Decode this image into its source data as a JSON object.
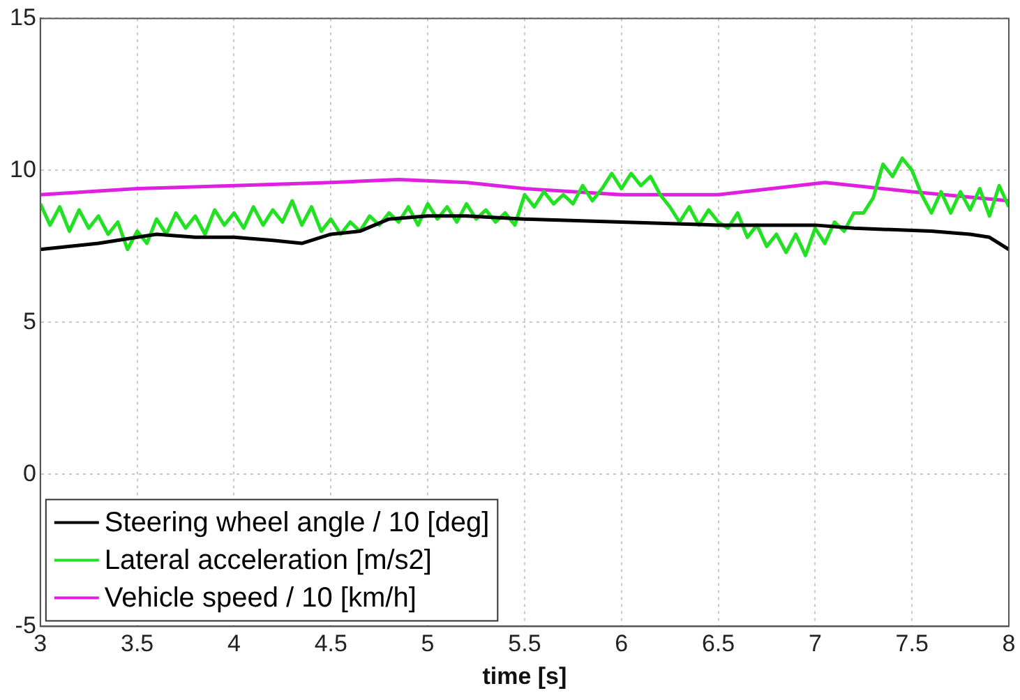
{
  "chart_data": {
    "type": "line",
    "xlabel": "time [s]",
    "xlim": [
      3,
      8
    ],
    "xticks": [
      3,
      3.5,
      4,
      4.5,
      5,
      5.5,
      6,
      6.5,
      7,
      7.5,
      8
    ],
    "ylim": [
      -5,
      15
    ],
    "yticks": [
      -5,
      0,
      5,
      10,
      15
    ],
    "grid": true,
    "legend": "bottom left",
    "marker": "none",
    "line_style": "solid",
    "series": [
      {
        "name": "Steering wheel angle / 10 [deg]",
        "color": "#000000",
        "x": [
          3,
          3.3,
          3.5,
          3.6,
          3.8,
          4,
          4.2,
          4.35,
          4.5,
          4.65,
          4.8,
          5,
          5.2,
          5.5,
          6,
          6.5,
          7,
          7.2,
          7.6,
          7.8,
          7.9,
          8
        ],
        "values": [
          7.4,
          7.6,
          7.8,
          7.9,
          7.8,
          7.8,
          7.7,
          7.6,
          7.9,
          8.0,
          8.4,
          8.5,
          8.5,
          8.4,
          8.3,
          8.2,
          8.2,
          8.1,
          8.0,
          7.9,
          7.8,
          7.4
        ]
      },
      {
        "name": "Lateral acceleration [m/s2]",
        "color": "#22e022",
        "x": [
          3,
          3.05,
          3.1,
          3.15,
          3.2,
          3.25,
          3.3,
          3.35,
          3.4,
          3.45,
          3.5,
          3.55,
          3.6,
          3.65,
          3.7,
          3.75,
          3.8,
          3.85,
          3.9,
          3.95,
          4,
          4.05,
          4.1,
          4.15,
          4.2,
          4.25,
          4.3,
          4.35,
          4.4,
          4.45,
          4.5,
          4.55,
          4.6,
          4.65,
          4.7,
          4.75,
          4.8,
          4.85,
          4.9,
          4.95,
          5,
          5.05,
          5.1,
          5.15,
          5.2,
          5.25,
          5.3,
          5.35,
          5.4,
          5.45,
          5.5,
          5.55,
          5.6,
          5.65,
          5.7,
          5.75,
          5.8,
          5.85,
          5.9,
          5.95,
          6,
          6.05,
          6.1,
          6.15,
          6.2,
          6.25,
          6.3,
          6.35,
          6.4,
          6.45,
          6.5,
          6.55,
          6.6,
          6.65,
          6.7,
          6.75,
          6.8,
          6.85,
          6.9,
          6.95,
          7,
          7.05,
          7.1,
          7.15,
          7.2,
          7.25,
          7.3,
          7.35,
          7.4,
          7.45,
          7.5,
          7.55,
          7.6,
          7.65,
          7.7,
          7.75,
          7.8,
          7.85,
          7.9,
          7.95,
          8
        ],
        "values": [
          8.9,
          8.2,
          8.8,
          8.0,
          8.7,
          8.1,
          8.5,
          7.9,
          8.3,
          7.4,
          8.0,
          7.6,
          8.4,
          7.9,
          8.6,
          8.1,
          8.5,
          7.9,
          8.7,
          8.2,
          8.6,
          8.1,
          8.8,
          8.2,
          8.7,
          8.3,
          9.0,
          8.2,
          8.8,
          8.0,
          8.4,
          7.9,
          8.3,
          8.0,
          8.5,
          8.2,
          8.6,
          8.3,
          8.8,
          8.2,
          8.9,
          8.4,
          8.8,
          8.3,
          8.9,
          8.4,
          8.7,
          8.3,
          8.6,
          8.2,
          9.2,
          8.8,
          9.3,
          8.9,
          9.2,
          8.9,
          9.5,
          9.0,
          9.4,
          9.9,
          9.4,
          9.9,
          9.5,
          9.8,
          9.2,
          8.8,
          8.3,
          8.8,
          8.2,
          8.7,
          8.3,
          8.1,
          8.6,
          7.8,
          8.2,
          7.5,
          7.9,
          7.3,
          7.9,
          7.2,
          8.1,
          7.6,
          8.3,
          8.0,
          8.6,
          8.6,
          9.1,
          10.2,
          9.8,
          10.4,
          10.0,
          9.2,
          8.6,
          9.3,
          8.6,
          9.3,
          8.7,
          9.4,
          8.5,
          9.5,
          8.8
        ]
      },
      {
        "name": "Vehicle speed / 10 [km/h]",
        "color": "#e020e0",
        "x": [
          3,
          3.5,
          4,
          4.5,
          4.85,
          5.2,
          5.5,
          6,
          6.5,
          7.05,
          7.5,
          8
        ],
        "values": [
          9.2,
          9.4,
          9.5,
          9.6,
          9.7,
          9.6,
          9.4,
          9.2,
          9.2,
          9.6,
          9.3,
          9.0
        ]
      }
    ]
  }
}
